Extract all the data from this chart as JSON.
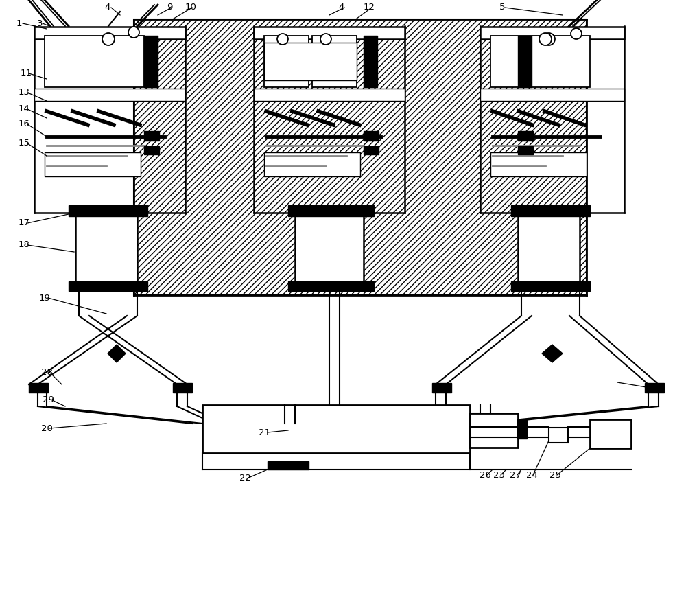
{
  "bg_color": "#ffffff",
  "lc": "#000000",
  "fig_width": 10.0,
  "fig_height": 8.77,
  "dpi": 100
}
